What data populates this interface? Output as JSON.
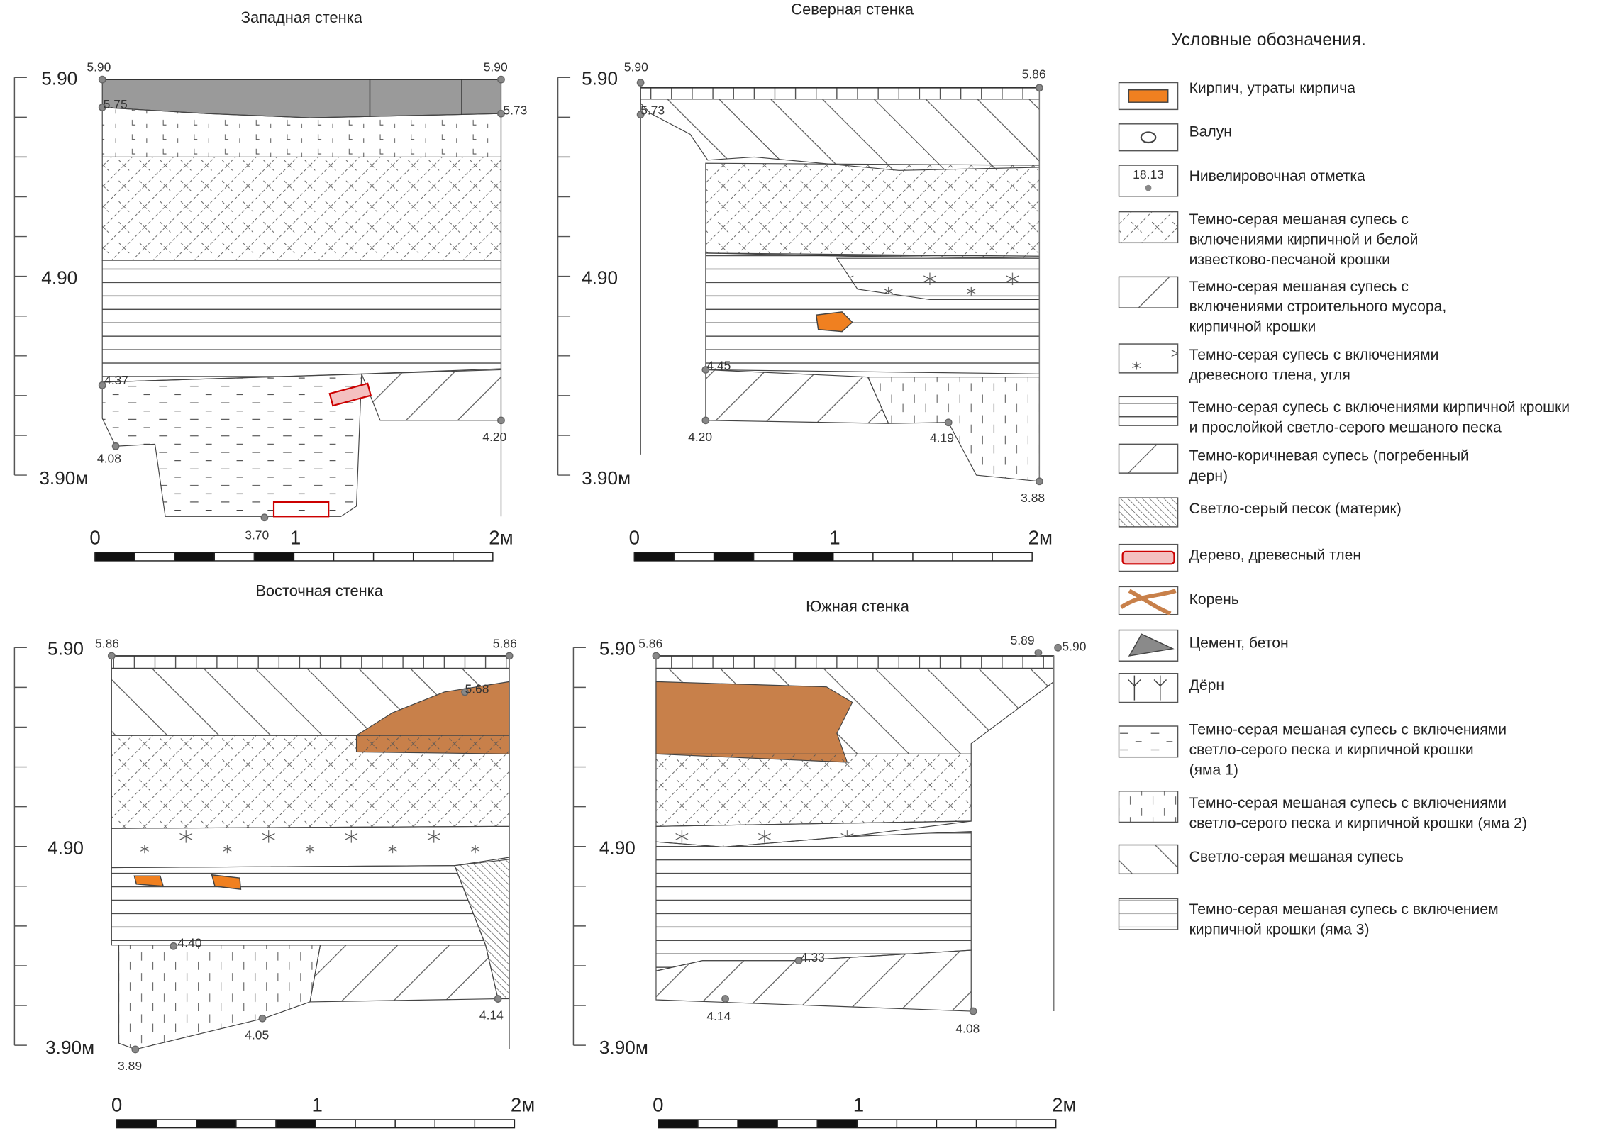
{
  "panels": [
    {
      "title": "Западная стенка",
      "depth_labels": [
        "5.90",
        "4.90",
        "3.90м"
      ],
      "elevations": [
        "5.90",
        "5.90",
        "5.75",
        "5.73",
        "4.37",
        "4.08",
        "4.20",
        "3.70"
      ],
      "scale": [
        "0",
        "1",
        "2м"
      ]
    },
    {
      "title": "Северная стенка",
      "depth_labels": [
        "5.90",
        "4.90",
        "3.90м"
      ],
      "elevations": [
        "5.90",
        "5.86",
        "5.73",
        "4.45",
        "4.20",
        "4.19",
        "3.88"
      ],
      "scale": [
        "0",
        "1",
        "2м"
      ]
    },
    {
      "title": "Восточная стенка",
      "depth_labels": [
        "5.90",
        "4.90",
        "3.90м"
      ],
      "elevations": [
        "5.86",
        "5.86",
        "5.68",
        "4.40",
        "4.05",
        "4.14",
        "3.89"
      ],
      "scale": [
        "0",
        "1",
        "2м"
      ]
    },
    {
      "title": "Южная стенка",
      "depth_labels": [
        "5.90",
        "4.90",
        "3.90м"
      ],
      "elevations": [
        "5.86",
        "5.89",
        "5.90",
        "4.33",
        "4.14",
        "4.08"
      ],
      "scale": [
        "0",
        "1",
        "2м"
      ]
    }
  ],
  "legend": {
    "title": "Условные обозначения.",
    "symbol_label": "18.13",
    "items": [
      [
        "Кирпич, утраты кирпича"
      ],
      [
        "Валун"
      ],
      [
        "Нивелировочная отметка"
      ],
      [
        "Темно-серая мешаная супесь с",
        "включениями кирпичной и белой",
        "известково-песчаной крошки"
      ],
      [
        "Темно-серая мешаная супесь с",
        "включениями строительного мусора,",
        "кирпичной крошки"
      ],
      [
        "Темно-серая супесь с включениями",
        "древесного тлена, угля"
      ],
      [
        "Темно-серая супесь с включениями кирпичной крошки",
        "и прослойкой светло-серого мешаного песка"
      ],
      [
        "Темно-коричневая супесь (погребенный",
        "дерн)"
      ],
      [
        "Светло-серый песок  (материк)"
      ],
      [
        "Дерево, древесный тлен"
      ],
      [
        "Корень"
      ],
      [
        "Цемент, бетон"
      ],
      [
        "Дёрн"
      ],
      [
        "Темно-серая мешаная супесь с включениями",
        "светло-серого песка и кирпичной крошки",
        "(яма 1)"
      ],
      [
        "Темно-серая мешаная супесь с включениями",
        "светло-серого песка и кирпичной крошки (яма 2)"
      ],
      [
        "Светло-серая мешаная супесь"
      ],
      [
        "Темно-серая мешаная супесь с включением",
        "кирпичной крошки (яма 3)"
      ]
    ]
  }
}
